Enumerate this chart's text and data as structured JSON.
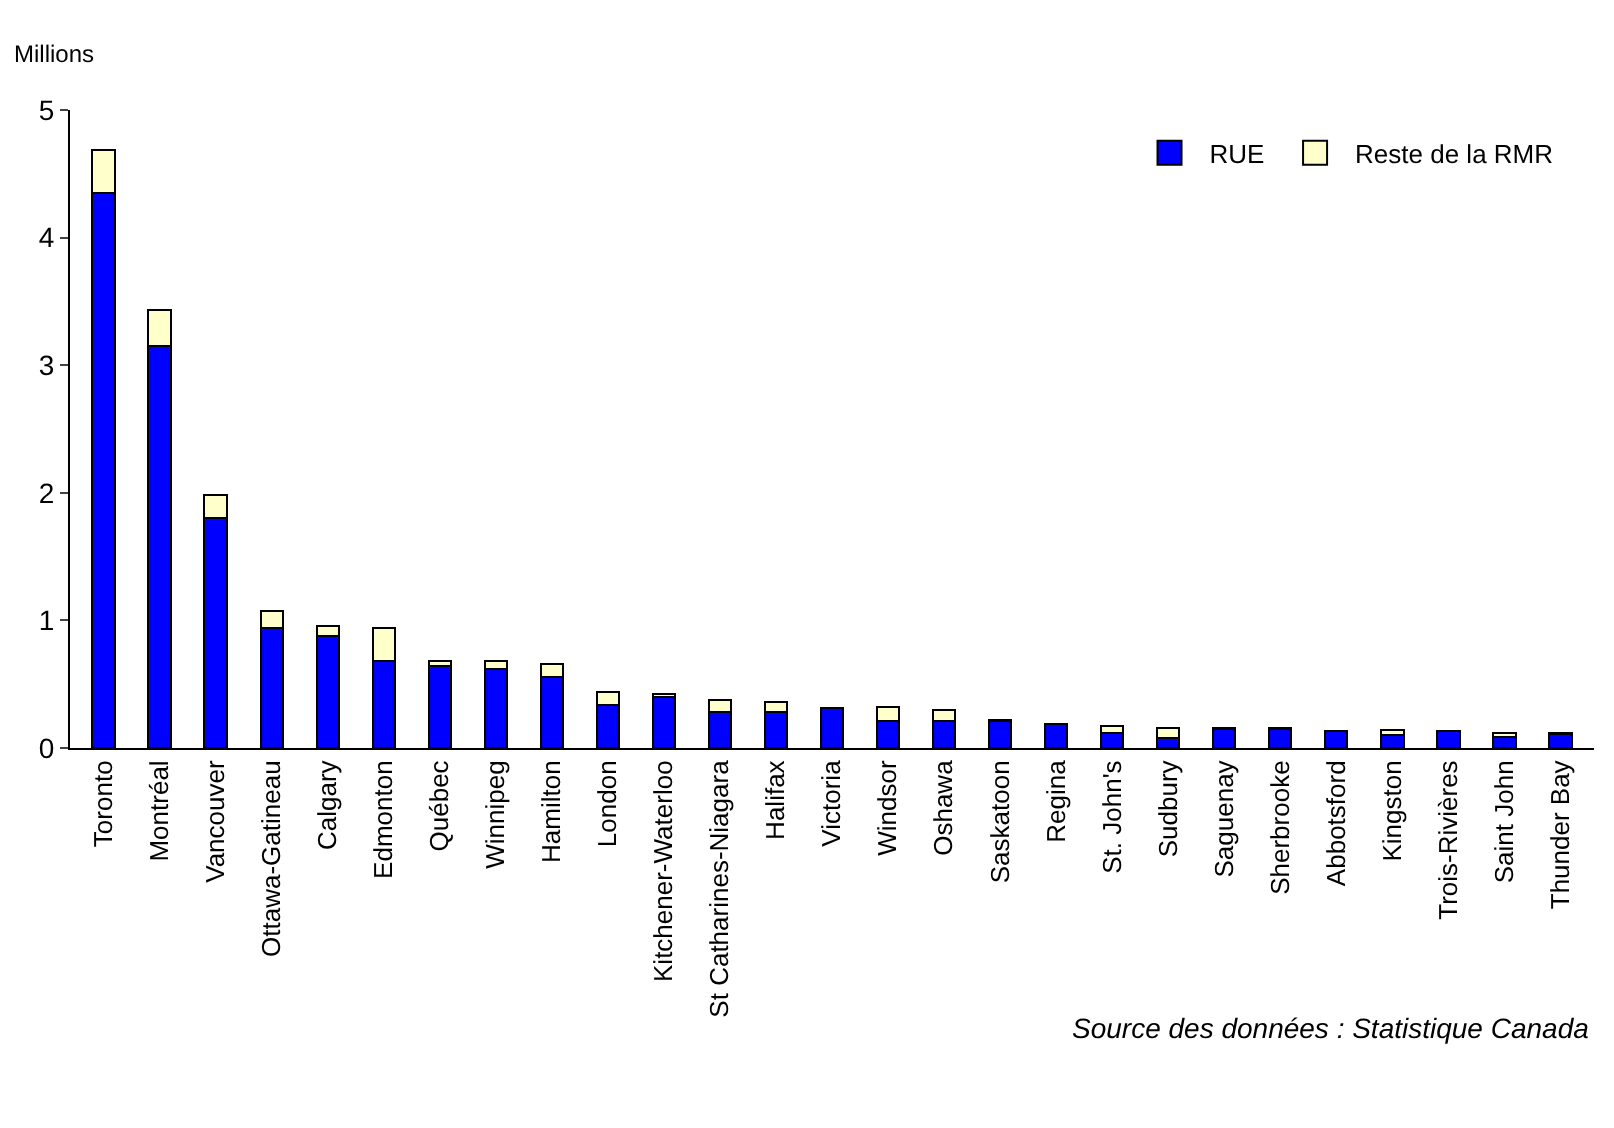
{
  "chart_data": {
    "type": "bar",
    "stacked": true,
    "ylabel": "Millions",
    "categories": [
      "Toronto",
      "Montréal",
      "Vancouver",
      "Ottawa-Gatineau",
      "Calgary",
      "Edmonton",
      "Québec",
      "Winnipeg",
      "Hamilton",
      "London",
      "Kitchener-Waterloo",
      "St Catharines-Niagara",
      "Halifax",
      "Victoria",
      "Windsor",
      "Oshawa",
      "Saskatoon",
      "Regina",
      "St. John's",
      "Sudbury",
      "Saguenay",
      "Sherbrooke",
      "Abbotsford",
      "Kingston",
      "Trois-Rivières",
      "Saint John",
      "Thunder Bay"
    ],
    "series": [
      {
        "name": "RUE",
        "color": "#0000ff",
        "values": [
          4.35,
          3.15,
          1.8,
          0.94,
          0.88,
          0.68,
          0.64,
          0.62,
          0.56,
          0.34,
          0.4,
          0.28,
          0.28,
          0.31,
          0.21,
          0.21,
          0.21,
          0.19,
          0.12,
          0.08,
          0.15,
          0.15,
          0.13,
          0.1,
          0.13,
          0.09,
          0.11
        ]
      },
      {
        "name": "Reste de la RMR",
        "color": "#ffffcc",
        "values": [
          0.34,
          0.28,
          0.18,
          0.13,
          0.08,
          0.26,
          0.04,
          0.06,
          0.1,
          0.1,
          0.02,
          0.1,
          0.08,
          null,
          0.11,
          0.09,
          0.01,
          null,
          0.05,
          0.08,
          0.01,
          0.01,
          null,
          0.04,
          null,
          0.03,
          0.01
        ]
      }
    ],
    "ylim": [
      0,
      5
    ],
    "yticks": [
      0,
      1,
      2,
      3,
      4,
      5
    ],
    "legend": "top right",
    "annotations": [
      "Source des données : Statistique Canada"
    ]
  }
}
